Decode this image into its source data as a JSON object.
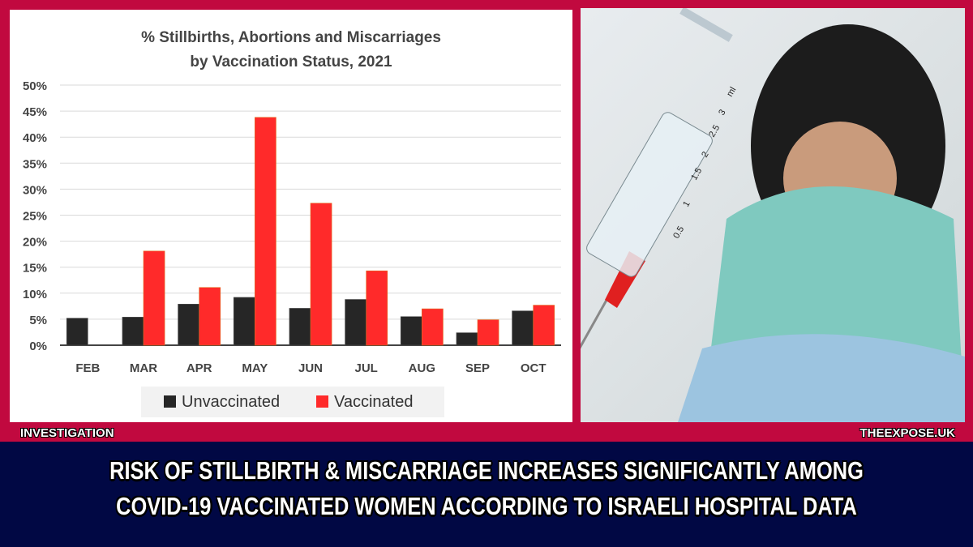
{
  "chart_data": {
    "type": "bar",
    "title_line1": "% Stillbirths, Abortions and Miscarriages",
    "title_line2": "by Vaccination Status, 2021",
    "categories": [
      "FEB",
      "MAR",
      "APR",
      "MAY",
      "JUN",
      "JUL",
      "AUG",
      "SEP",
      "OCT"
    ],
    "series": [
      {
        "name": "Unvaccinated",
        "color": "#262626",
        "values": [
          5.2,
          5.4,
          7.9,
          9.2,
          7.1,
          8.8,
          5.5,
          2.4,
          6.6
        ]
      },
      {
        "name": "Vaccinated",
        "color": "#ff2a2a",
        "values": [
          null,
          18.1,
          11.1,
          43.8,
          27.3,
          14.3,
          7.0,
          4.9,
          7.7
        ]
      }
    ],
    "yticks": [
      "0%",
      "5%",
      "10%",
      "15%",
      "20%",
      "25%",
      "30%",
      "35%",
      "40%",
      "45%",
      "50%"
    ],
    "ylim": [
      0,
      50
    ],
    "grid": true,
    "legend_position": "bottom"
  },
  "labels": {
    "section": "INVESTIGATION",
    "site": "THEEXPOSE.UK",
    "headline_line1": "RISK OF STILLBIRTH & MISCARRIAGE INCREASES SIGNIFICANTLY AMONG",
    "headline_line2": "COVID-19 VACCINATED WOMEN ACCORDING TO ISRAELI HOSPITAL DATA"
  },
  "syringe_marks": [
    "0.5",
    "1",
    "1.5",
    "2",
    "2.5",
    "3",
    "ml"
  ]
}
